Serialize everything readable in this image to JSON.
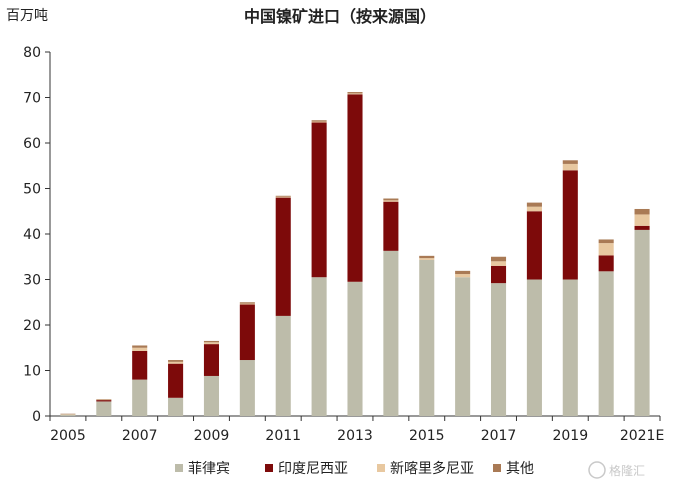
{
  "chart_data": {
    "type": "bar",
    "stacked": true,
    "title": "中国镍矿进口（按来源国）",
    "unit_label": "百万吨",
    "categories": [
      "2005",
      "2006",
      "2007",
      "2008",
      "2009",
      "2010",
      "2011",
      "2012",
      "2013",
      "2014",
      "2015",
      "2016",
      "2017",
      "2018",
      "2019",
      "2020",
      "2021E"
    ],
    "x_tick_labels": [
      "2005",
      "2007",
      "2009",
      "2011",
      "2013",
      "2015",
      "2017",
      "2019",
      "2021E"
    ],
    "ylim": [
      0,
      80
    ],
    "yticks": [
      0,
      10,
      20,
      30,
      40,
      50,
      60,
      70,
      80
    ],
    "grid": false,
    "legend_position": "bottom",
    "series": [
      {
        "name": "菲律宾",
        "color": "#bdbcaa",
        "values": [
          0.3,
          3.2,
          8.0,
          4.0,
          8.8,
          12.3,
          22.0,
          30.5,
          29.5,
          36.3,
          34.3,
          30.5,
          29.2,
          30.0,
          30.0,
          31.8,
          40.9
        ]
      },
      {
        "name": "印度尼西亚",
        "color": "#7d0a0a",
        "values": [
          0.0,
          0.3,
          6.3,
          7.5,
          7.0,
          12.2,
          26.0,
          34.0,
          41.2,
          10.8,
          0.0,
          0.0,
          3.8,
          15.0,
          24.0,
          3.5,
          0.9
        ]
      },
      {
        "name": "新喀里多尼亚",
        "color": "#e8c8a0",
        "values": [
          0.1,
          0.1,
          0.7,
          0.4,
          0.4,
          0.2,
          0.2,
          0.2,
          0.2,
          0.3,
          0.4,
          0.7,
          1.0,
          1.0,
          1.4,
          2.7,
          2.5
        ]
      },
      {
        "name": "其他",
        "color": "#a97a55",
        "values": [
          0.1,
          0.1,
          0.5,
          0.4,
          0.3,
          0.3,
          0.2,
          0.3,
          0.3,
          0.4,
          0.5,
          0.7,
          1.0,
          0.9,
          0.8,
          0.8,
          1.2
        ]
      }
    ]
  },
  "watermark": "格隆汇"
}
